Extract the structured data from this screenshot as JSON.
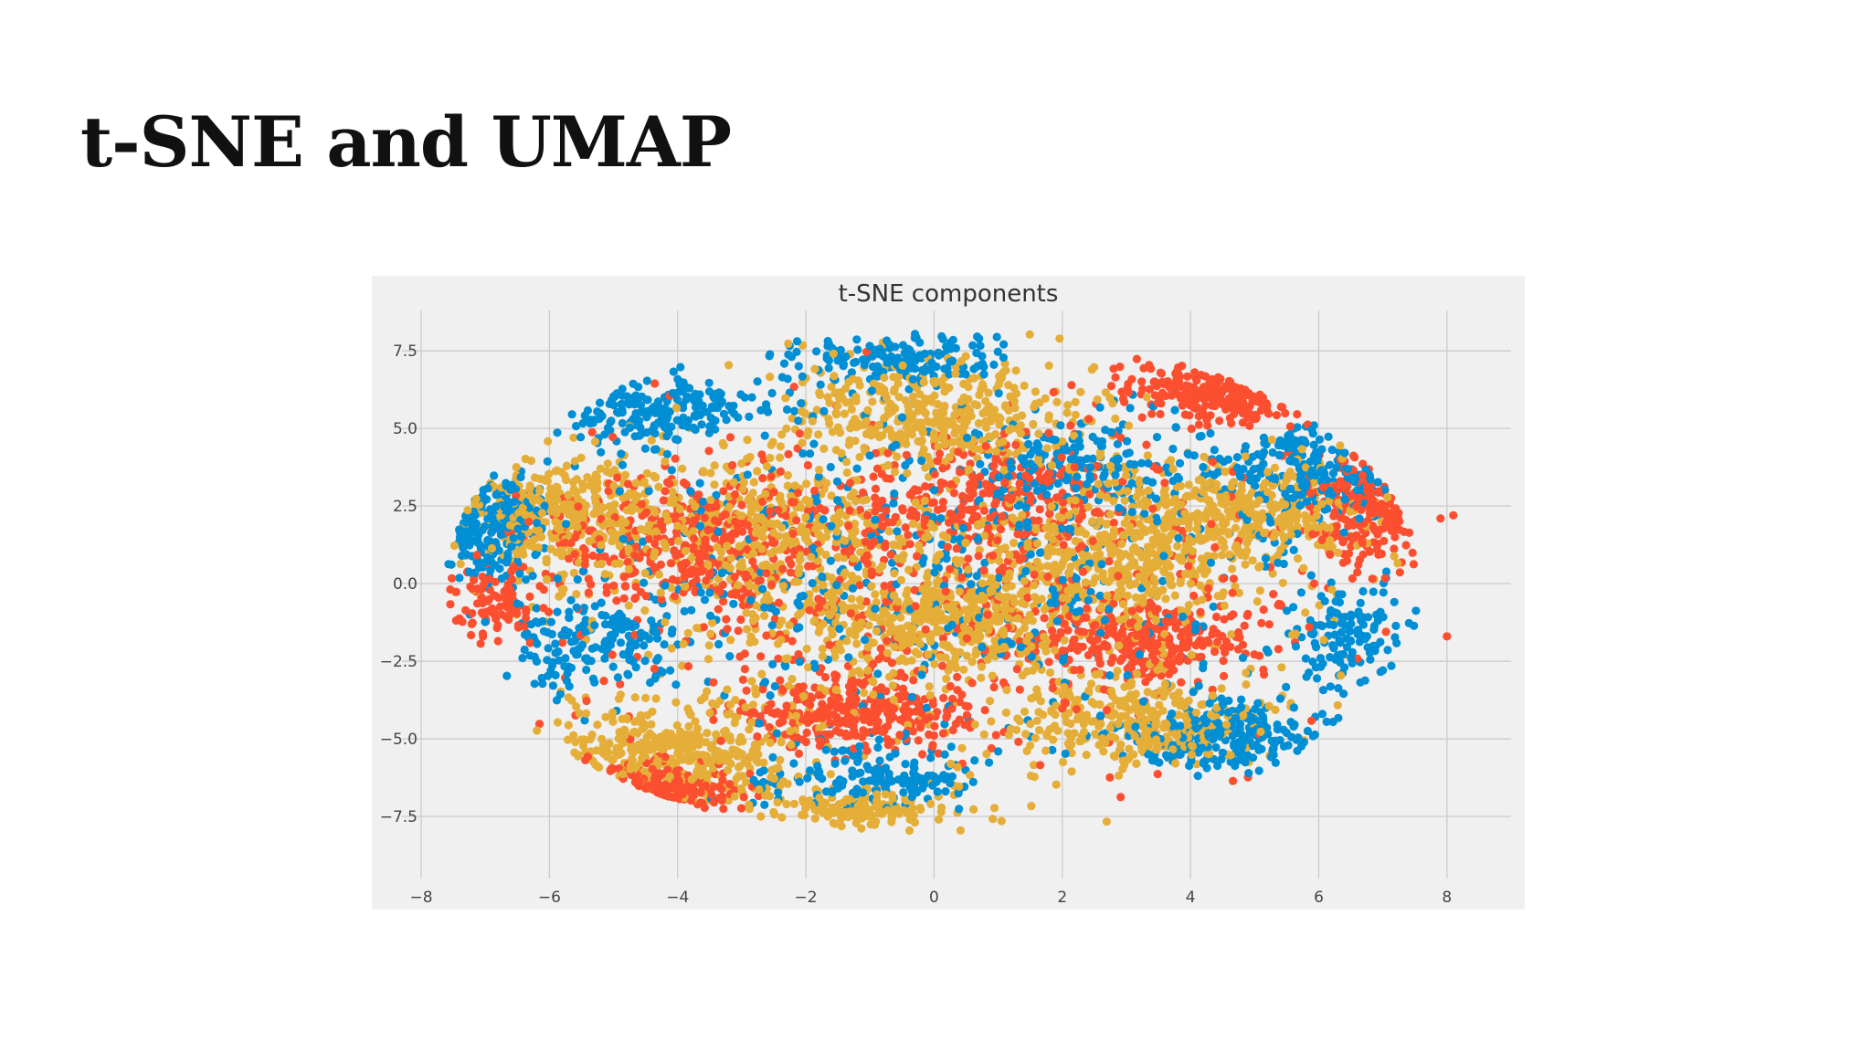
{
  "slide": {
    "title": "t-SNE and UMAP"
  },
  "chart_data": {
    "type": "scatter",
    "title": "t-SNE components",
    "xlabel": "",
    "ylabel": "",
    "xlim": [
      -8.3,
      9.0
    ],
    "ylim": [
      -9.5,
      8.8
    ],
    "xticks": [
      -8,
      -6,
      -4,
      -2,
      0,
      2,
      4,
      6,
      8
    ],
    "yticks": [
      -7.5,
      -5.0,
      -2.5,
      0.0,
      2.5,
      5.0,
      7.5
    ],
    "xtick_labels": [
      "−8",
      "−6",
      "−4",
      "−2",
      "0",
      "2",
      "4",
      "6",
      "8"
    ],
    "ytick_labels": [
      "−7.5",
      "−5.0",
      "−2.5",
      "0.0",
      "2.5",
      "5.0",
      "7.5"
    ],
    "grid": true,
    "background_color": "#f0f0f0",
    "series": [
      {
        "color": "#008fd5",
        "clusters": [
          {
            "cx": 5.9,
            "cy": 3.6,
            "rx": 1.4,
            "ry": 1.4,
            "n": 220
          },
          {
            "cx": 4.5,
            "cy": -4.9,
            "rx": 1.5,
            "ry": 1.0,
            "n": 240
          },
          {
            "cx": -7.0,
            "cy": 2.0,
            "rx": 0.8,
            "ry": 1.6,
            "n": 200
          },
          {
            "cx": -4.3,
            "cy": 5.6,
            "rx": 1.5,
            "ry": 1.0,
            "n": 200
          },
          {
            "cx": -0.5,
            "cy": 7.2,
            "rx": 1.4,
            "ry": 0.7,
            "n": 160
          },
          {
            "cx": -1.0,
            "cy": -6.3,
            "rx": 1.5,
            "ry": 1.0,
            "n": 160
          },
          {
            "cx": 6.5,
            "cy": -1.8,
            "rx": 0.9,
            "ry": 1.5,
            "n": 120
          },
          {
            "cx": -5.2,
            "cy": -1.8,
            "rx": 1.4,
            "ry": 1.4,
            "n": 180
          },
          {
            "cx": 2.2,
            "cy": 3.8,
            "rx": 1.6,
            "ry": 1.4,
            "n": 160
          },
          {
            "cx": 0.0,
            "cy": 0.5,
            "rx": 5.5,
            "ry": 5.0,
            "n": 500
          }
        ]
      },
      {
        "color": "#fc4f30",
        "clusters": [
          {
            "cx": 4.8,
            "cy": 6.2,
            "rx": 1.6,
            "ry": 0.9,
            "n": 220
          },
          {
            "cx": 6.9,
            "cy": 2.4,
            "rx": 0.9,
            "ry": 1.4,
            "n": 200
          },
          {
            "cx": -4.6,
            "cy": -6.8,
            "rx": 1.2,
            "ry": 0.8,
            "n": 180
          },
          {
            "cx": -1.2,
            "cy": -4.2,
            "rx": 1.6,
            "ry": 1.0,
            "n": 280
          },
          {
            "cx": 3.2,
            "cy": -1.8,
            "rx": 1.6,
            "ry": 1.0,
            "n": 280
          },
          {
            "cx": -3.8,
            "cy": 1.4,
            "rx": 2.0,
            "ry": 2.0,
            "n": 340
          },
          {
            "cx": 1.0,
            "cy": 2.8,
            "rx": 1.8,
            "ry": 1.6,
            "n": 240
          },
          {
            "cx": -6.8,
            "cy": -0.6,
            "rx": 0.7,
            "ry": 1.2,
            "n": 90
          },
          {
            "cx": 0.0,
            "cy": 0.0,
            "rx": 5.8,
            "ry": 5.0,
            "n": 520
          }
        ],
        "outliers": [
          [
            8.0,
            -1.7
          ],
          [
            7.9,
            2.1
          ],
          [
            8.1,
            2.2
          ]
        ]
      },
      {
        "color": "#e5ae38",
        "clusters": [
          {
            "cx": 0.0,
            "cy": 5.4,
            "rx": 2.0,
            "ry": 1.5,
            "n": 380
          },
          {
            "cx": 0.2,
            "cy": -1.2,
            "rx": 2.2,
            "ry": 1.4,
            "n": 420
          },
          {
            "cx": 3.2,
            "cy": -4.5,
            "rx": 1.6,
            "ry": 1.2,
            "n": 320
          },
          {
            "cx": -4.2,
            "cy": -5.6,
            "rx": 1.8,
            "ry": 1.4,
            "n": 380
          },
          {
            "cx": -5.7,
            "cy": 2.3,
            "rx": 1.7,
            "ry": 1.7,
            "n": 360
          },
          {
            "cx": 4.8,
            "cy": 2.3,
            "rx": 1.8,
            "ry": 1.4,
            "n": 360
          },
          {
            "cx": 3.0,
            "cy": 0.8,
            "rx": 1.8,
            "ry": 1.5,
            "n": 260
          },
          {
            "cx": -1.0,
            "cy": -7.2,
            "rx": 1.3,
            "ry": 0.6,
            "n": 150
          },
          {
            "cx": -2.6,
            "cy": 1.8,
            "rx": 1.6,
            "ry": 1.6,
            "n": 240
          },
          {
            "cx": 0.0,
            "cy": 0.0,
            "rx": 5.8,
            "ry": 5.2,
            "n": 700
          }
        ]
      }
    ]
  }
}
